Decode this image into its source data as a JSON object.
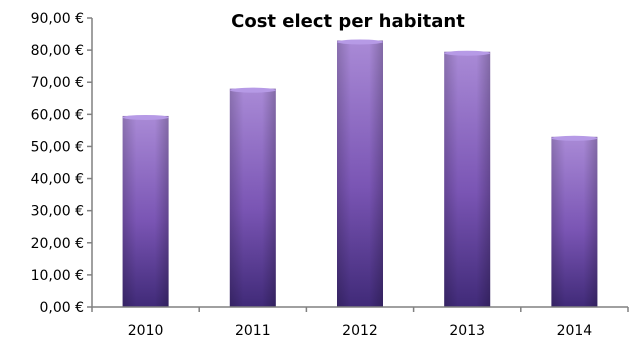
{
  "chart_data": {
    "type": "bar",
    "title": "Cost elect per habitant",
    "categories": [
      "2010",
      "2011",
      "2012",
      "2013",
      "2014"
    ],
    "values": [
      59.5,
      68.0,
      83.0,
      79.5,
      53.0
    ],
    "ylim": [
      0,
      90
    ],
    "ytick_labels": [
      "0,00 €",
      "10,00 €",
      "20,00 €",
      "30,00 €",
      "40,00 €",
      "50,00 €",
      "60,00 €",
      "70,00 €",
      "80,00 €",
      "90,00 €"
    ],
    "grid": false,
    "legend": "none",
    "colors": {
      "bar_top": "#a98ad6",
      "bar_mid": "#7a55b4",
      "bar_bottom": "#402a78",
      "bar_cap": "#b69ae6",
      "axis": "#808080"
    }
  }
}
